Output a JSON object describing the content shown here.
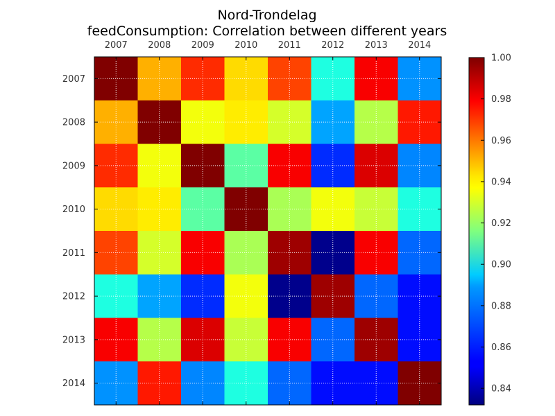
{
  "chart_data": {
    "type": "heatmap",
    "title": "Nord-Trondelag",
    "subtitle": "feedConsumption: Correlation between different years",
    "x_categories": [
      "2007",
      "2008",
      "2009",
      "2010",
      "2011",
      "2012",
      "2013",
      "2014"
    ],
    "y_categories": [
      "2007",
      "2008",
      "2009",
      "2010",
      "2011",
      "2012",
      "2013",
      "2014"
    ],
    "values": [
      [
        1.0,
        0.95,
        0.972,
        0.943,
        0.968,
        0.9,
        0.98,
        0.877
      ],
      [
        0.95,
        1.0,
        0.935,
        0.94,
        0.93,
        0.88,
        0.925,
        0.975
      ],
      [
        0.972,
        0.935,
        1.0,
        0.91,
        0.98,
        0.86,
        0.985,
        0.875
      ],
      [
        0.943,
        0.94,
        0.91,
        1.0,
        0.923,
        0.935,
        0.928,
        0.9
      ],
      [
        0.968,
        0.93,
        0.98,
        0.923,
        0.995,
        0.834,
        0.98,
        0.87
      ],
      [
        0.9,
        0.88,
        0.86,
        0.935,
        0.834,
        0.995,
        0.87,
        0.855
      ],
      [
        0.98,
        0.925,
        0.985,
        0.928,
        0.98,
        0.87,
        0.995,
        0.855
      ],
      [
        0.877,
        0.975,
        0.875,
        0.9,
        0.87,
        0.855,
        0.855,
        1.0
      ]
    ],
    "colormap": "jet",
    "vmin": 0.832,
    "vmax": 1.0,
    "x_axis_position": "top",
    "grid": true,
    "colorbar": {
      "ticks": [
        1.0,
        0.98,
        0.96,
        0.94,
        0.92,
        0.9,
        0.88,
        0.86,
        0.84
      ],
      "tick_labels": [
        "1.00",
        "0.98",
        "0.96",
        "0.94",
        "0.92",
        "0.90",
        "0.88",
        "0.86",
        "0.84"
      ]
    }
  }
}
